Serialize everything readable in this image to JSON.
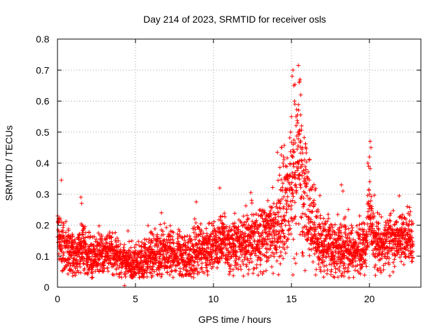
{
  "chart_data": {
    "type": "scatter",
    "title": "Day 214 of 2023, SRMTID for receiver osls",
    "xlabel": "GPS time / hours",
    "ylabel": "SRMTID / TECUs",
    "xlim": [
      0,
      23.3
    ],
    "ylim": [
      0,
      0.8
    ],
    "x_ticks": [
      0,
      5,
      10,
      15,
      20
    ],
    "x_tick_labels": [
      "0",
      "5",
      "10",
      "15",
      "20"
    ],
    "y_ticks": [
      0,
      0.1,
      0.2,
      0.3,
      0.4,
      0.5,
      0.6,
      0.7,
      0.8
    ],
    "y_tick_labels": [
      "0",
      "0.1",
      "0.2",
      "0.3",
      "0.4",
      "0.5",
      "0.6",
      "0.7",
      "0.8"
    ],
    "grid": true,
    "marker": "+",
    "marker_color": "#ff0000",
    "sampling_interval_hours": 0.01,
    "trend": {
      "x": [
        0,
        0.3,
        0.8,
        1.2,
        1.5,
        2,
        3,
        3.5,
        4,
        4.3,
        5,
        5.5,
        6,
        7,
        8,
        8.5,
        9,
        10,
        10.5,
        11,
        12,
        12.5,
        13,
        13.5,
        14,
        14.5,
        15,
        15.3,
        15.6,
        15.9,
        16.2,
        16.6,
        17,
        17.5,
        18,
        18.5,
        19,
        19.5,
        19.8,
        20,
        20.2,
        20.5,
        21,
        21.5,
        22,
        22.5,
        22.8
      ],
      "y": [
        0.18,
        0.14,
        0.11,
        0.1,
        0.13,
        0.1,
        0.11,
        0.12,
        0.09,
        0.08,
        0.08,
        0.09,
        0.1,
        0.11,
        0.1,
        0.1,
        0.12,
        0.13,
        0.14,
        0.13,
        0.14,
        0.15,
        0.15,
        0.17,
        0.2,
        0.25,
        0.33,
        0.4,
        0.38,
        0.3,
        0.22,
        0.17,
        0.15,
        0.13,
        0.12,
        0.13,
        0.11,
        0.11,
        0.14,
        0.25,
        0.18,
        0.15,
        0.14,
        0.15,
        0.15,
        0.16,
        0.14
      ]
    },
    "spread": {
      "x": [
        0,
        2,
        4,
        8,
        12,
        14,
        15,
        15.6,
        16,
        17,
        19,
        20,
        21,
        23
      ],
      "y": [
        0.04,
        0.035,
        0.03,
        0.04,
        0.045,
        0.06,
        0.1,
        0.12,
        0.08,
        0.05,
        0.04,
        0.05,
        0.04,
        0.04
      ]
    },
    "outliers": [
      {
        "x": 0.25,
        "y": 0.345
      },
      {
        "x": 1.5,
        "y": 0.29
      },
      {
        "x": 1.55,
        "y": 0.27
      },
      {
        "x": 4.3,
        "y": 0.005
      },
      {
        "x": 8.9,
        "y": 0.275
      },
      {
        "x": 10.4,
        "y": 0.32
      },
      {
        "x": 12.4,
        "y": 0.305
      },
      {
        "x": 12.45,
        "y": 0.28
      },
      {
        "x": 14.1,
        "y": 0.435
      },
      {
        "x": 14.5,
        "y": 0.42
      },
      {
        "x": 15.05,
        "y": 0.68
      },
      {
        "x": 15.1,
        "y": 0.7
      },
      {
        "x": 15.15,
        "y": 0.65
      },
      {
        "x": 15.2,
        "y": 0.6
      },
      {
        "x": 15.3,
        "y": 0.55
      },
      {
        "x": 15.45,
        "y": 0.715
      },
      {
        "x": 15.5,
        "y": 0.66
      },
      {
        "x": 15.55,
        "y": 0.67
      },
      {
        "x": 15.6,
        "y": 0.62
      },
      {
        "x": 15.65,
        "y": 0.52
      },
      {
        "x": 15.7,
        "y": 0.45
      },
      {
        "x": 15.4,
        "y": 0.53
      },
      {
        "x": 14.95,
        "y": 0.5
      },
      {
        "x": 15.0,
        "y": 0.55
      },
      {
        "x": 18.2,
        "y": 0.33
      },
      {
        "x": 18.3,
        "y": 0.31
      },
      {
        "x": 19.9,
        "y": 0.4
      },
      {
        "x": 19.95,
        "y": 0.39
      },
      {
        "x": 20.05,
        "y": 0.47
      },
      {
        "x": 20.1,
        "y": 0.45
      },
      {
        "x": 20.0,
        "y": 0.42
      }
    ]
  }
}
